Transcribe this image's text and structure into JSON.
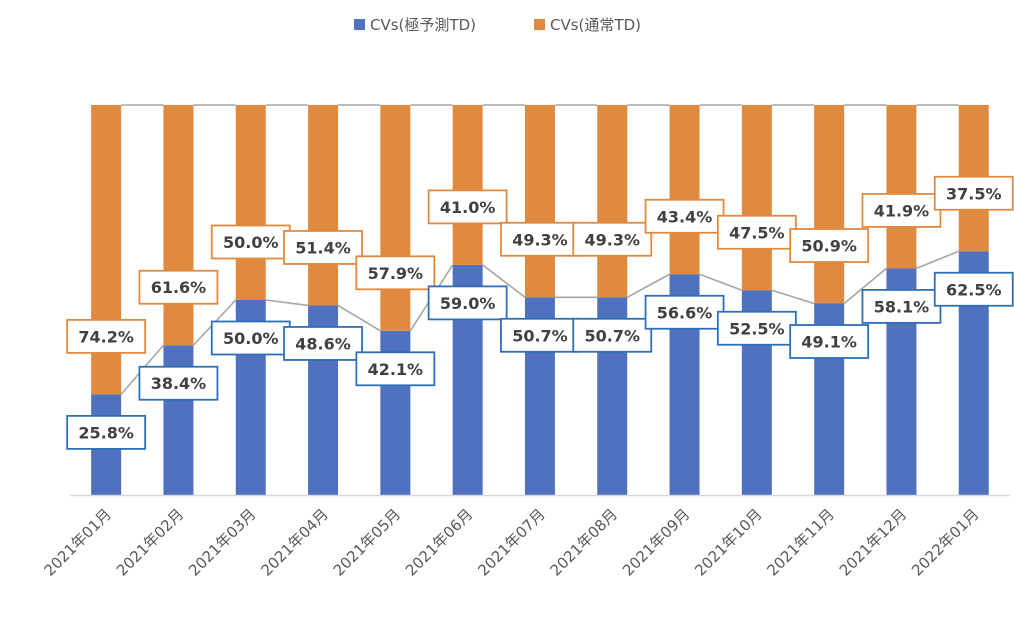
{
  "chart_data": {
    "type": "bar",
    "stacked": true,
    "percent_stacked": true,
    "categories": [
      "2021年01月",
      "2021年02月",
      "2021年03月",
      "2021年04月",
      "2021年05月",
      "2021年06月",
      "2021年07月",
      "2021年08月",
      "2021年09月",
      "2021年10月",
      "2021年11月",
      "2021年12月",
      "2022年01月"
    ],
    "series": [
      {
        "name": "CVs(極予測TD)",
        "color": "#4f71be",
        "values": [
          25.8,
          38.4,
          50.0,
          48.6,
          42.1,
          59.0,
          50.7,
          50.7,
          56.6,
          52.5,
          49.1,
          58.1,
          62.5
        ],
        "labels": [
          "25.8%",
          "38.4%",
          "50.0%",
          "48.6%",
          "42.1%",
          "59.0%",
          "50.7%",
          "50.7%",
          "56.6%",
          "52.5%",
          "49.1%",
          "58.1%",
          "62.5%"
        ],
        "label_border_color": "#2e6fb7"
      },
      {
        "name": "CVs(通常TD)",
        "color": "#e08a40",
        "values": [
          74.2,
          61.6,
          50.0,
          51.4,
          57.9,
          41.0,
          49.3,
          49.3,
          43.4,
          47.5,
          50.9,
          41.9,
          37.5
        ],
        "labels": [
          "74.2%",
          "61.6%",
          "50.0%",
          "51.4%",
          "57.9%",
          "41.0%",
          "49.3%",
          "49.3%",
          "43.4%",
          "47.5%",
          "50.9%",
          "41.9%",
          "37.5%"
        ],
        "label_border_color": "#e08a40"
      }
    ],
    "ylim": [
      0,
      100
    ],
    "series_lines": true,
    "series_line_color": "#a6a6a6",
    "legend_position": "top",
    "title": "",
    "xlabel": "",
    "ylabel": ""
  }
}
